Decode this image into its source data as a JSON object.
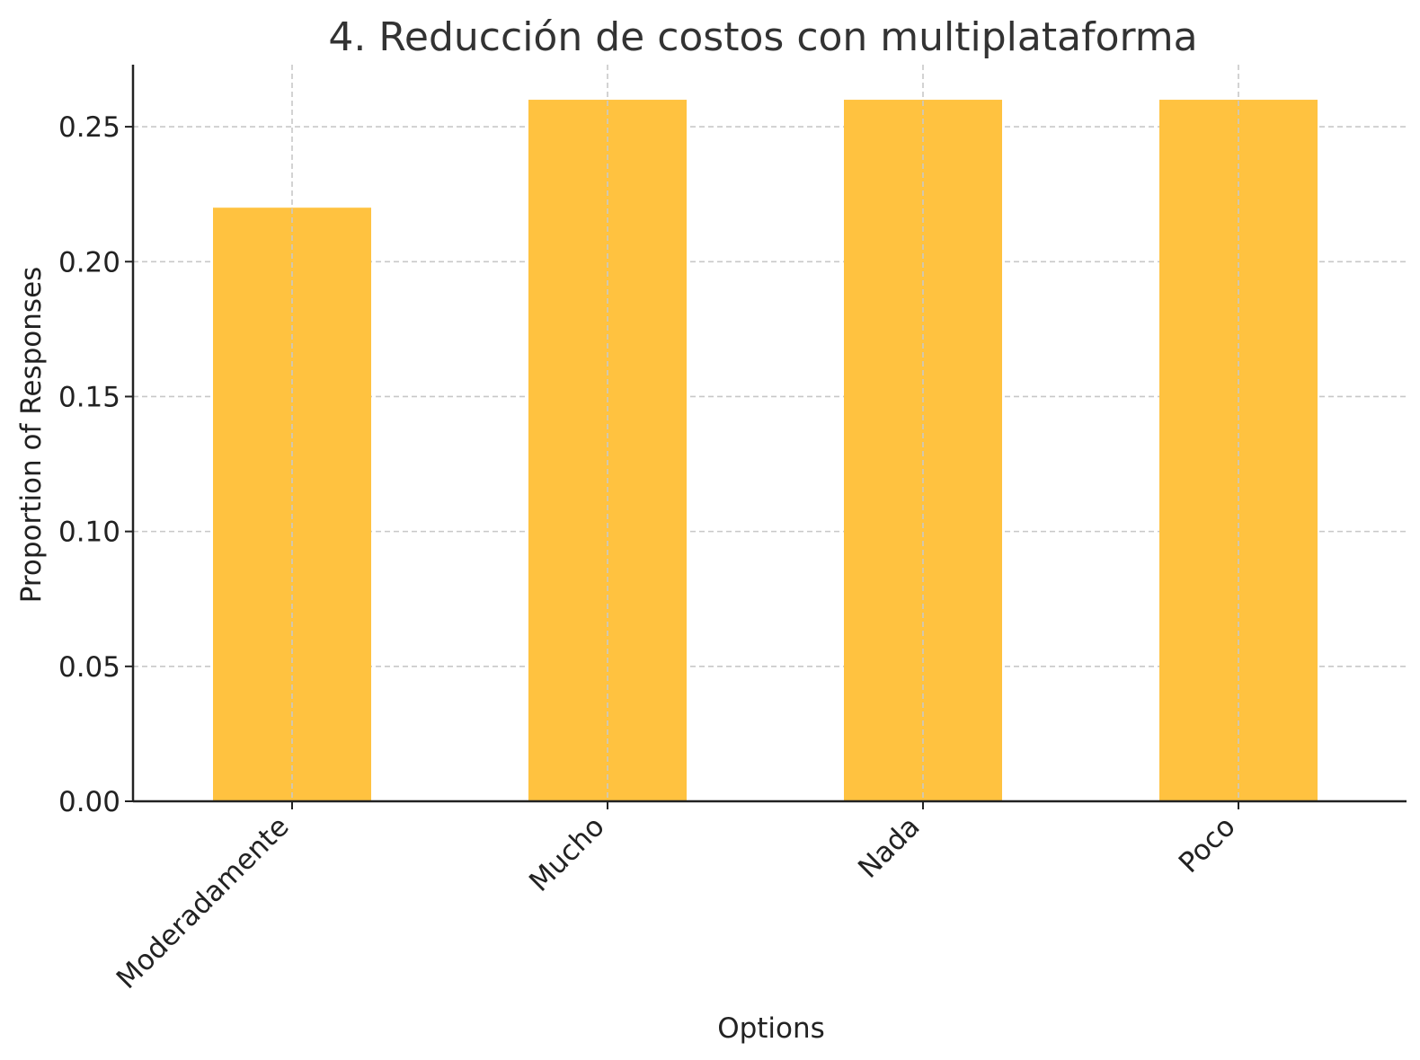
{
  "chart_data": {
    "type": "bar",
    "title": "4. Reducción de costos con multiplataforma",
    "xlabel": "Options",
    "ylabel": "Proportion of Responses",
    "categories": [
      "Moderadamente",
      "Mucho",
      "Nada",
      "Poco"
    ],
    "values": [
      0.22,
      0.26,
      0.26,
      0.26
    ],
    "ylim": [
      0,
      0.273
    ],
    "yticks": [
      "0.00",
      "0.05",
      "0.10",
      "0.15",
      "0.20",
      "0.25"
    ],
    "ytick_values": [
      0,
      0.05,
      0.1,
      0.15,
      0.2,
      0.25
    ],
    "bar_color": "#FFC240",
    "grid": true
  }
}
